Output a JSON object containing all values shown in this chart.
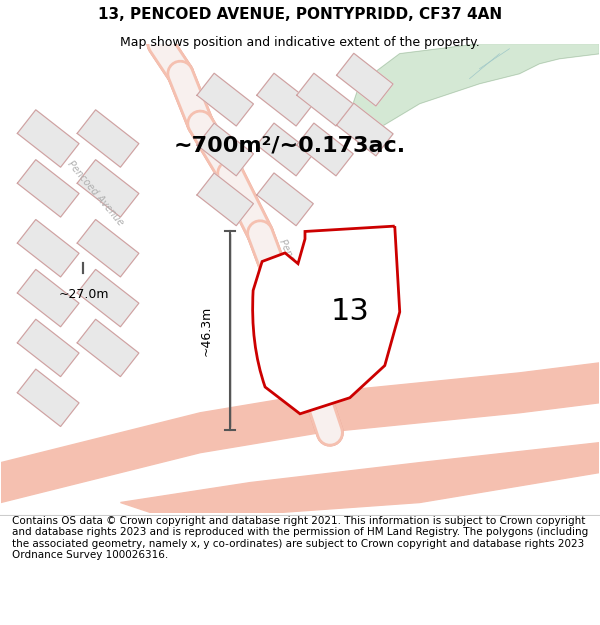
{
  "title": "13, PENCOED AVENUE, PONTYPRIDD, CF37 4AN",
  "subtitle": "Map shows position and indicative extent of the property.",
  "footer": "Contains OS data © Crown copyright and database right 2021. This information is subject to Crown copyright and database rights 2023 and is reproduced with the permission of HM Land Registry. The polygons (including the associated geometry, namely x, y co-ordinates) are subject to Crown copyright and database rights 2023 Ordnance Survey 100026316.",
  "area_label": "~700m²/~0.173ac.",
  "number_label": "13",
  "dim_h": "~46.3m",
  "dim_w": "~27.0m",
  "bg_color": "#ffffff",
  "map_bg": "#f5f5f5",
  "road_color": "#f5c0b0",
  "road_outline": "#e8a090",
  "building_fill": "#e8e8e8",
  "building_outline": "#d0a0a0",
  "green_area": "#d4e8d4",
  "property_outline": "#cc0000",
  "property_fill": "#ffffff",
  "dim_line_color": "#555555",
  "street_label_color": "#b0b0b0",
  "title_fontsize": 11,
  "subtitle_fontsize": 9,
  "footer_fontsize": 7.5
}
